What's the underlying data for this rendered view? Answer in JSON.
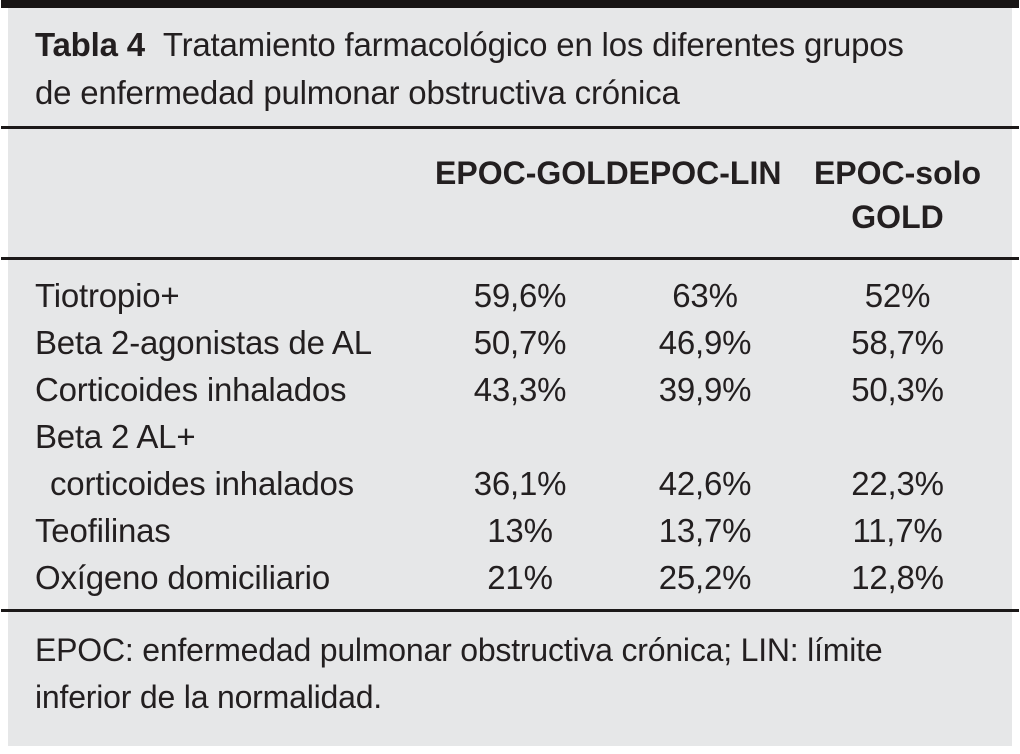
{
  "table": {
    "label": "Tabla 4",
    "title": "Tratamiento farmacológico en los diferentes grupos de enfermedad pulmonar obstructiva crónica",
    "columns": [
      {
        "line1": "EPOC-GOLD",
        "line2": ""
      },
      {
        "line1": "EPOC-LIN",
        "line2": ""
      },
      {
        "line1": "EPOC-solo",
        "line2": "GOLD"
      }
    ],
    "rows": [
      {
        "label": "Tiotropio+",
        "values": [
          "59,6%",
          "63%",
          "52%"
        ]
      },
      {
        "label": "Beta 2-agonistas de AL",
        "values": [
          "50,7%",
          "46,9%",
          "58,7%"
        ]
      },
      {
        "label": "Corticoides inhalados",
        "values": [
          "43,3%",
          "39,9%",
          "50,3%"
        ]
      },
      {
        "label": "Beta 2 AL+",
        "values": [
          "",
          "",
          ""
        ]
      },
      {
        "label": "corticoides inhalados",
        "values": [
          "36,1%",
          "42,6%",
          "22,3%"
        ]
      },
      {
        "label": "Teofilinas",
        "values": [
          "13%",
          "13,7%",
          "11,7%"
        ]
      },
      {
        "label": "Oxígeno domiciliario",
        "values": [
          "21%",
          "25,2%",
          "12,8%"
        ]
      }
    ],
    "footnote": "EPOC: enfermedad pulmonar obstructiva crónica; LIN: límite inferior de la normalidad."
  },
  "chart_data": {
    "type": "table",
    "title": "Tabla 4 Tratamiento farmacológico en los diferentes grupos de enfermedad pulmonar obstructiva crónica",
    "categories": [
      "Tiotropio+",
      "Beta 2-agonistas de AL",
      "Corticoides inhalados",
      "Beta 2 AL+ corticoides inhalados",
      "Teofilinas",
      "Oxígeno domiciliario"
    ],
    "series": [
      {
        "name": "EPOC-GOLD",
        "values": [
          59.6,
          50.7,
          43.3,
          36.1,
          13.0,
          21.0
        ]
      },
      {
        "name": "EPOC-LIN",
        "values": [
          63.0,
          46.9,
          39.9,
          42.6,
          13.7,
          25.2
        ]
      },
      {
        "name": "EPOC-solo GOLD",
        "values": [
          52.0,
          58.7,
          50.3,
          22.3,
          11.7,
          12.8
        ]
      }
    ],
    "value_unit": "%"
  },
  "colors": {
    "panel_background": "#e6e7e8",
    "text": "#231f20",
    "rule": "#1c1919"
  }
}
